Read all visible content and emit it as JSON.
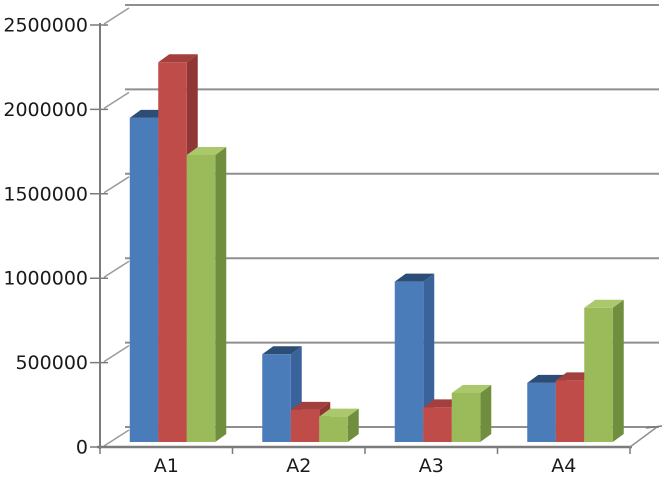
{
  "chart_data": {
    "type": "bar",
    "variant": "3d-clustered-column",
    "title": "",
    "subtitle": "",
    "legend": "none",
    "grid": true,
    "categories": [
      "A1",
      "A2",
      "A3",
      "A4"
    ],
    "series": [
      {
        "name": "blue",
        "color": "#4b7cba",
        "color_top": "#2c4d75",
        "color_side": "#3a639c",
        "values": [
          1920000,
          520000,
          950000,
          350000
        ]
      },
      {
        "name": "red",
        "color": "#bf4c49",
        "color_top": "#a33f3d",
        "color_side": "#903634",
        "values": [
          2250000,
          190000,
          205000,
          365000
        ]
      },
      {
        "name": "green",
        "color": "#9bba59",
        "color_top": "#abc86d",
        "color_side": "#6f8f3f",
        "values": [
          1700000,
          150000,
          290000,
          795000
        ]
      }
    ],
    "y_axis": {
      "min": 0,
      "max": 2500000,
      "tick_interval": 500000,
      "tick_labels": [
        "0",
        "500000",
        "1000000",
        "1500000",
        "2000000",
        "2500000"
      ]
    },
    "x_axis": {
      "labels": [
        "A1",
        "A2",
        "A3",
        "A4"
      ]
    },
    "colors": {
      "gridline": "#8f8f8f",
      "axis": "#7b7b7b",
      "tick_connector": "#9a9a9a",
      "label": "#1a1a1a",
      "background": "#ffffff"
    }
  }
}
